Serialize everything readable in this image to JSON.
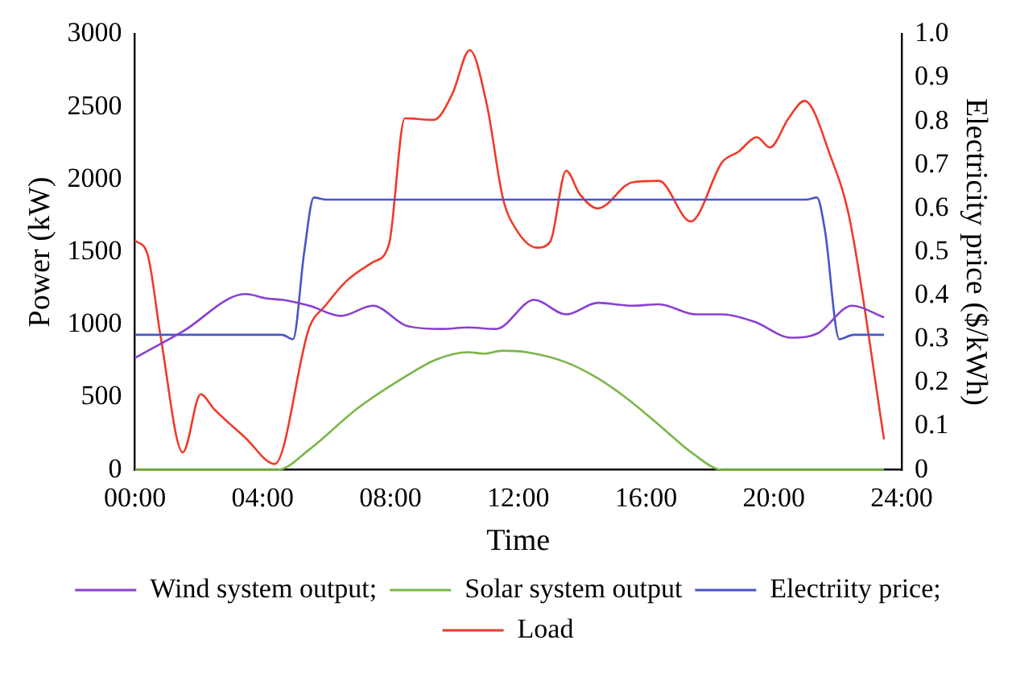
{
  "chart_data": {
    "type": "line",
    "xlabel": "Time",
    "ylabel": "Power (kW)",
    "y2label": "Electricity price ($/kWh)",
    "xlim": [
      0,
      24
    ],
    "xticks": [
      {
        "value": 0,
        "label": "00:00"
      },
      {
        "value": 4,
        "label": "04:00"
      },
      {
        "value": 8,
        "label": "08:00"
      },
      {
        "value": 12,
        "label": "12:00"
      },
      {
        "value": 16,
        "label": "16:00"
      },
      {
        "value": 20,
        "label": "20:00"
      },
      {
        "value": 24,
        "label": "24:00"
      }
    ],
    "ylim": [
      0,
      3000
    ],
    "yticks": [
      0,
      500,
      1000,
      1500,
      2000,
      2500,
      3000
    ],
    "y2lim": [
      0,
      1
    ],
    "y2ticks": [
      0,
      0.1,
      0.2,
      0.3,
      0.4,
      0.5,
      0.6,
      0.7,
      0.8,
      0.9,
      {
        "value": 1,
        "label": "1.0"
      }
    ],
    "grid": false,
    "legend": "bottom",
    "marker": "none",
    "line_style": "solid",
    "series": [
      {
        "name": "Wind system output;",
        "color": "#8a3fd1",
        "x": [
          0,
          1.48,
          3.46,
          4.13,
          4.63,
          5.46,
          6.45,
          7.45,
          8.53,
          9.6,
          10.43,
          11.3,
          12.5,
          13.5,
          14.49,
          15.57,
          16.4,
          17.56,
          18.39,
          19.38,
          20.55,
          21.38,
          22.45,
          23.45
        ],
        "values": [
          770,
          950,
          1210,
          1180,
          1170,
          1130,
          1060,
          1130,
          990,
          970,
          980,
          970,
          1170,
          1070,
          1150,
          1130,
          1140,
          1070,
          1070,
          1020,
          910,
          940,
          1130,
          1050
        ]
      },
      {
        "name": "Solar system output",
        "color": "#7ab648",
        "x": [
          0,
          4.46,
          5.46,
          6.95,
          8.45,
          9.44,
          10.43,
          10.93,
          11.5,
          12.26,
          13.5,
          14.49,
          15.41,
          16.4,
          17.48,
          18.39,
          23.45
        ],
        "values": [
          0,
          0,
          140,
          420,
          640,
          760,
          810,
          800,
          820,
          810,
          740,
          630,
          490,
          310,
          110,
          0,
          0
        ]
      },
      {
        "name": "Electriity price;",
        "color": "#4a55c8",
        "axis": "y2",
        "x": [
          0,
          4.6,
          4.95,
          5.3,
          5.6,
          6,
          21,
          21.35,
          21.6,
          22.05,
          22.5,
          23.45
        ],
        "values": [
          0.31,
          0.31,
          0.3,
          0.5,
          0.625,
          0.62,
          0.62,
          0.625,
          0.55,
          0.3,
          0.31,
          0.31
        ]
      },
      {
        "name": "Load",
        "color": "#f03a2a",
        "x": [
          0,
          0.4,
          0.81,
          1.5,
          2.06,
          2.47,
          3.46,
          4.38,
          5.46,
          5.96,
          6.62,
          7.45,
          7.95,
          8.45,
          9.36,
          9.94,
          10.48,
          11.02,
          11.52,
          11.92,
          12.58,
          13.0,
          13.5,
          13.92,
          14.49,
          15.57,
          16.4,
          17.4,
          18.39,
          18.89,
          19.47,
          19.88,
          20.46,
          20.96,
          21.79,
          22.37,
          23.45
        ],
        "values": [
          1580,
          1480,
          910,
          120,
          520,
          420,
          220,
          40,
          980,
          1130,
          1300,
          1430,
          1550,
          2420,
          2410,
          2590,
          2890,
          2510,
          1870,
          1660,
          1530,
          1570,
          2060,
          1900,
          1800,
          1980,
          1990,
          1710,
          2120,
          2190,
          2290,
          2220,
          2420,
          2540,
          2150,
          1730,
          210
        ]
      }
    ]
  }
}
